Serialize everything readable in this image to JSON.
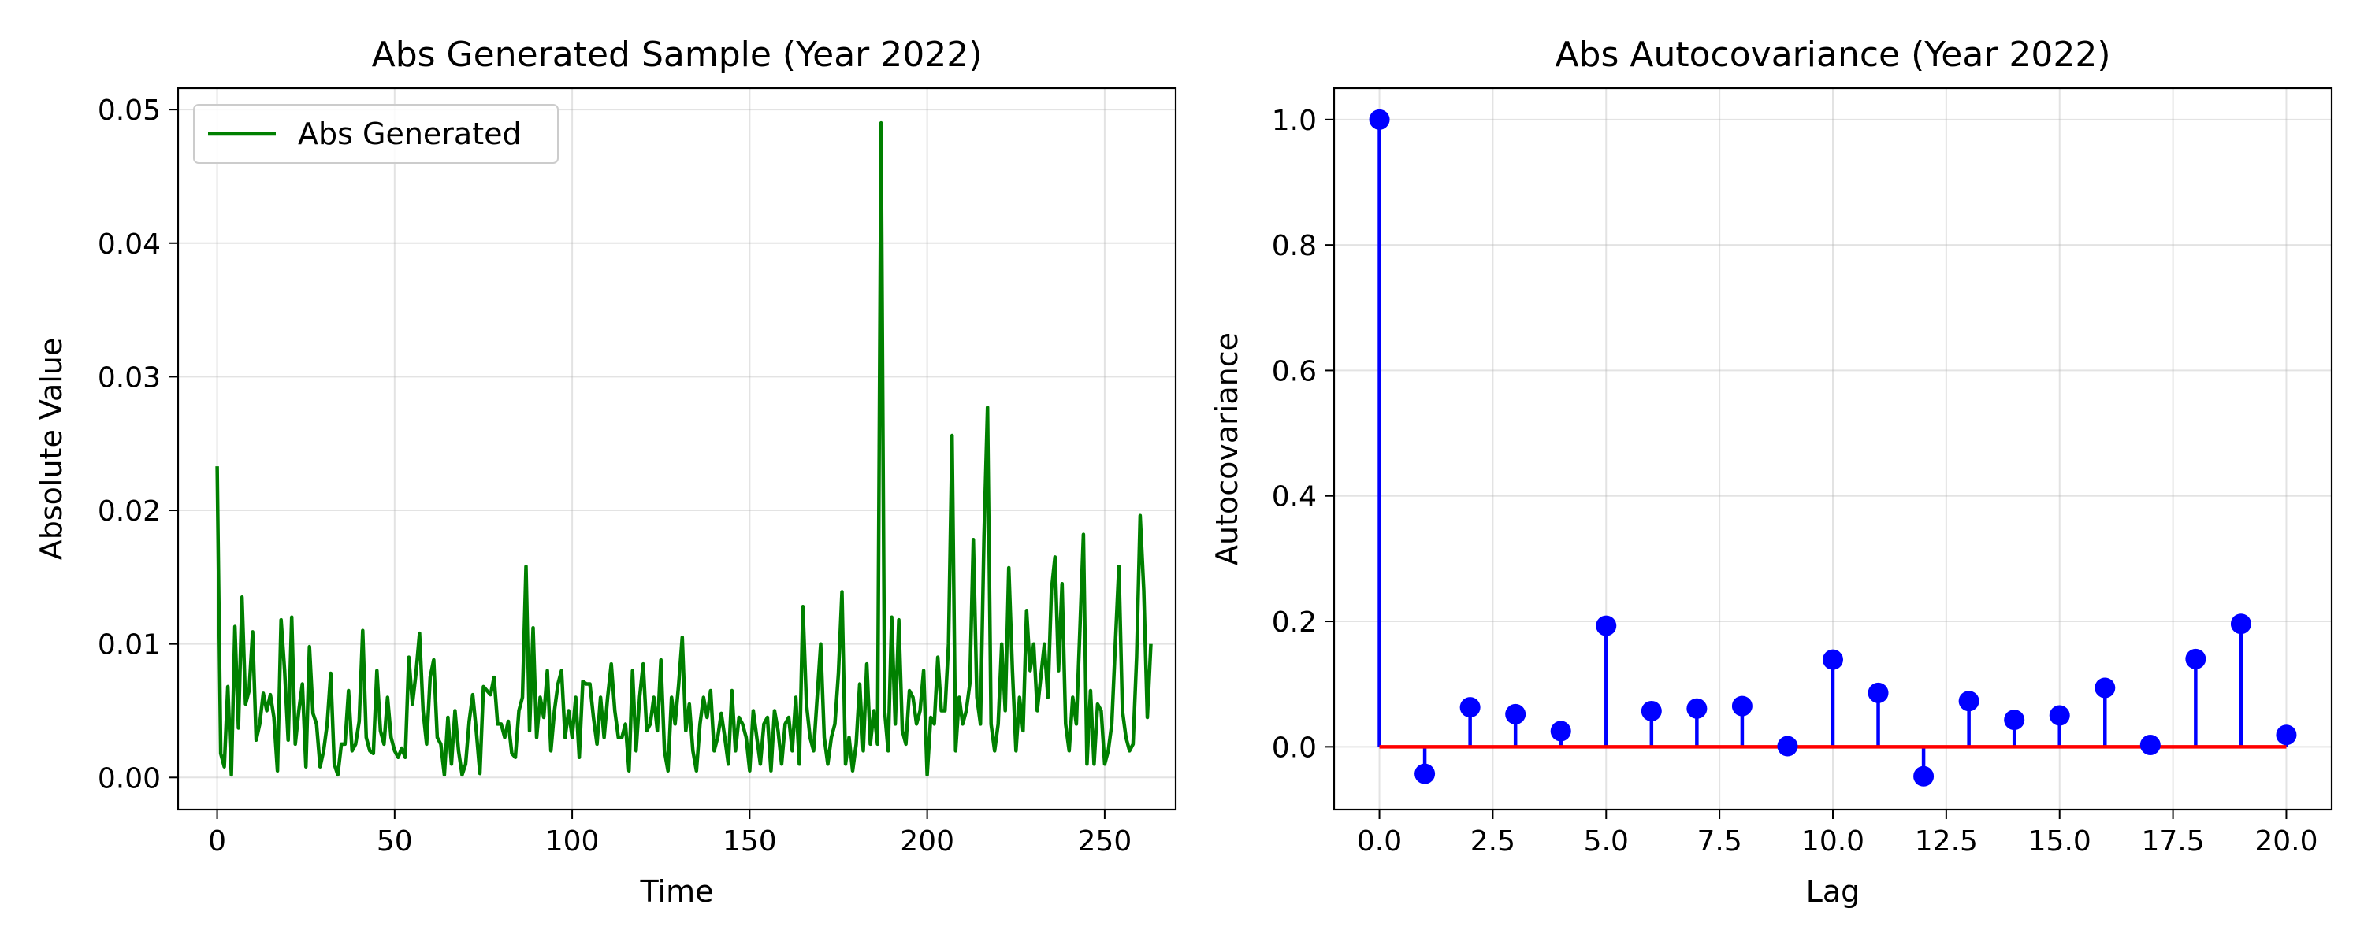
{
  "chart_data": [
    {
      "type": "line",
      "title": "Abs Generated Sample (Year 2022)",
      "xlabel": "Time",
      "ylabel": "Absolute Value",
      "xlim": [
        -11,
        270
      ],
      "ylim": [
        -0.0024,
        0.0516
      ],
      "xticks": [
        0,
        50,
        100,
        150,
        200,
        250
      ],
      "xtick_labels": [
        "0",
        "50",
        "100",
        "150",
        "200",
        "250"
      ],
      "yticks": [
        0.0,
        0.01,
        0.02,
        0.03,
        0.04,
        0.05
      ],
      "ytick_labels": [
        "0.00",
        "0.01",
        "0.02",
        "0.03",
        "0.04",
        "0.05"
      ],
      "grid": true,
      "legend_position": "top-left",
      "line_color": "#008000",
      "series": [
        {
          "name": "Abs Generated",
          "x_start": 0,
          "values": [
            0.0233,
            0.0018,
            0.0008,
            0.0068,
            0.0002,
            0.0113,
            0.0037,
            0.0135,
            0.0055,
            0.0065,
            0.0109,
            0.0028,
            0.004,
            0.0063,
            0.005,
            0.0062,
            0.0045,
            0.0005,
            0.0118,
            0.008,
            0.0028,
            0.012,
            0.0025,
            0.005,
            0.007,
            0.0008,
            0.0098,
            0.0048,
            0.004,
            0.0008,
            0.002,
            0.004,
            0.0078,
            0.001,
            0.0002,
            0.0025,
            0.0025,
            0.0065,
            0.002,
            0.0025,
            0.0042,
            0.011,
            0.003,
            0.002,
            0.0018,
            0.008,
            0.0035,
            0.0025,
            0.006,
            0.003,
            0.002,
            0.0015,
            0.0022,
            0.0015,
            0.009,
            0.0055,
            0.0078,
            0.0108,
            0.005,
            0.0025,
            0.0075,
            0.0088,
            0.003,
            0.0025,
            0.0002,
            0.0045,
            0.001,
            0.005,
            0.002,
            0.0002,
            0.001,
            0.0042,
            0.0062,
            0.0035,
            0.0003,
            0.0068,
            0.0065,
            0.0062,
            0.0075,
            0.004,
            0.004,
            0.003,
            0.0042,
            0.0018,
            0.0015,
            0.005,
            0.006,
            0.0158,
            0.0035,
            0.0112,
            0.003,
            0.006,
            0.0045,
            0.008,
            0.002,
            0.005,
            0.007,
            0.008,
            0.003,
            0.005,
            0.003,
            0.006,
            0.0015,
            0.0072,
            0.007,
            0.007,
            0.0045,
            0.0025,
            0.006,
            0.003,
            0.006,
            0.0085,
            0.005,
            0.003,
            0.003,
            0.004,
            0.0005,
            0.008,
            0.002,
            0.006,
            0.0085,
            0.0035,
            0.004,
            0.006,
            0.0035,
            0.0088,
            0.002,
            0.0005,
            0.006,
            0.004,
            0.007,
            0.0105,
            0.0035,
            0.0055,
            0.002,
            0.0005,
            0.004,
            0.006,
            0.0045,
            0.0065,
            0.002,
            0.003,
            0.0048,
            0.003,
            0.001,
            0.0065,
            0.002,
            0.0045,
            0.004,
            0.003,
            0.0005,
            0.005,
            0.003,
            0.001,
            0.004,
            0.0045,
            0.0005,
            0.005,
            0.0035,
            0.001,
            0.004,
            0.0045,
            0.002,
            0.006,
            0.001,
            0.0128,
            0.0055,
            0.003,
            0.002,
            0.006,
            0.01,
            0.003,
            0.001,
            0.003,
            0.004,
            0.0078,
            0.0139,
            0.001,
            0.003,
            0.0005,
            0.0025,
            0.007,
            0.002,
            0.0085,
            0.0025,
            0.005,
            0.0025,
            0.049,
            0.005,
            0.002,
            0.012,
            0.004,
            0.0118,
            0.0035,
            0.0025,
            0.0065,
            0.006,
            0.004,
            0.005,
            0.008,
            0.0002,
            0.0045,
            0.004,
            0.009,
            0.005,
            0.005,
            0.01,
            0.0256,
            0.002,
            0.006,
            0.004,
            0.005,
            0.007,
            0.0178,
            0.006,
            0.004,
            0.018,
            0.0277,
            0.004,
            0.002,
            0.004,
            0.01,
            0.005,
            0.0157,
            0.008,
            0.002,
            0.006,
            0.0035,
            0.0125,
            0.008,
            0.01,
            0.005,
            0.0075,
            0.01,
            0.006,
            0.014,
            0.0165,
            0.008,
            0.0145,
            0.004,
            0.002,
            0.006,
            0.004,
            0.011,
            0.0182,
            0.001,
            0.0065,
            0.001,
            0.0055,
            0.005,
            0.001,
            0.002,
            0.004,
            0.01,
            0.0158,
            0.005,
            0.003,
            0.002,
            0.0025,
            0.009,
            0.0196,
            0.014,
            0.0045,
            0.01
          ]
        }
      ]
    },
    {
      "type": "stem",
      "title": "Abs Autocovariance (Year 2022)",
      "xlabel": "Lag",
      "ylabel": "Autocovariance",
      "xlim": [
        -1.0,
        21.0
      ],
      "ylim": [
        -0.1,
        1.05
      ],
      "xticks": [
        0,
        2.5,
        5,
        7.5,
        10,
        12.5,
        15,
        17.5,
        20
      ],
      "xtick_labels": [
        "0.0",
        "2.5",
        "5.0",
        "7.5",
        "10.0",
        "12.5",
        "15.0",
        "17.5",
        "20.0"
      ],
      "yticks": [
        0.0,
        0.2,
        0.4,
        0.6,
        0.8,
        1.0
      ],
      "ytick_labels": [
        "0.0",
        "0.2",
        "0.4",
        "0.6",
        "0.8",
        "1.0"
      ],
      "grid": true,
      "stem_color": "#0000ff",
      "baseline_color": "#ff0000",
      "x": [
        0,
        1,
        2,
        3,
        4,
        5,
        6,
        7,
        8,
        9,
        10,
        11,
        12,
        13,
        14,
        15,
        16,
        17,
        18,
        19,
        20
      ],
      "values": [
        1.0,
        -0.043,
        0.063,
        0.052,
        0.025,
        0.193,
        0.057,
        0.061,
        0.065,
        0.001,
        0.139,
        0.086,
        -0.047,
        0.073,
        0.043,
        0.05,
        0.094,
        0.003,
        0.14,
        0.196,
        0.019
      ]
    }
  ]
}
